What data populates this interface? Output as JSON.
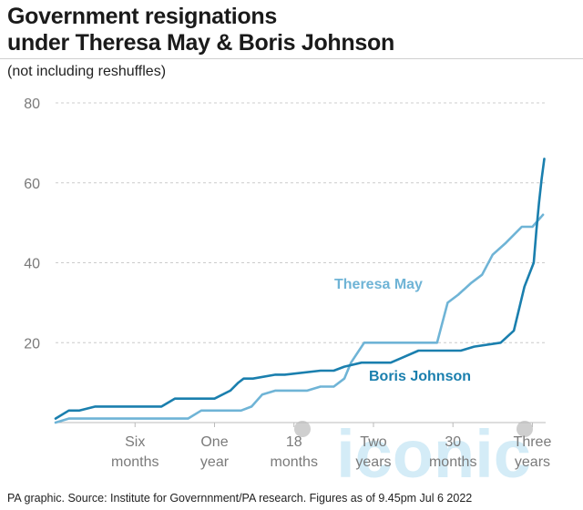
{
  "title_line1": "Government resignations",
  "title_line2": "under Theresa May & Boris Johnson",
  "subtitle": "(not including reshuffles)",
  "source": "PA graphic. Source: Institute for Governnment/PA research. Figures as of 9.45pm Jul 6 2022",
  "watermark_text": "iconic",
  "colors": {
    "theresa_may": "#6fb4d6",
    "boris_johnson": "#1a7fae",
    "grid": "#cccccc",
    "axis": "#bbbbbb",
    "tick_text": "#7a7a7a",
    "watermark": "#d4ecf7",
    "watermark_dot": "#cfcfcf"
  },
  "chart_data": {
    "type": "line",
    "xlabel": "",
    "ylabel": "",
    "xlim": [
      0,
      37
    ],
    "ylim": [
      0,
      80
    ],
    "yticks": [
      20,
      40,
      60,
      80
    ],
    "grid": true,
    "xticks": [
      {
        "x": 6,
        "line1": "Six",
        "line2": "months"
      },
      {
        "x": 12,
        "line1": "One",
        "line2": "year"
      },
      {
        "x": 18,
        "line1": "18",
        "line2": "months"
      },
      {
        "x": 24,
        "line1": "Two",
        "line2": "years"
      },
      {
        "x": 30,
        "line1": "30",
        "line2": "months"
      },
      {
        "x": 36,
        "line1": "Three",
        "line2": "years"
      }
    ],
    "series": [
      {
        "name": "Theresa May",
        "x": [
          0,
          1,
          10,
          11,
          14,
          14.8,
          15.6,
          16.6,
          19,
          20,
          21,
          21.8,
          22.3,
          23.3,
          28.8,
          29.6,
          30.4,
          31.4,
          32.2,
          33,
          34,
          35.2,
          36,
          36.8
        ],
        "y": [
          0,
          1,
          1,
          3,
          3,
          4,
          7,
          8,
          8,
          9,
          9,
          11,
          15,
          20,
          20,
          30,
          32,
          35,
          37,
          42,
          45,
          49,
          49,
          52
        ]
      },
      {
        "name": "Boris Johnson",
        "x": [
          0,
          1,
          1.8,
          3,
          8,
          9,
          12,
          13.2,
          13.8,
          14.2,
          14.9,
          16.6,
          17.3,
          20,
          21,
          21.8,
          23.1,
          24.1,
          25.3,
          26,
          27.4,
          28.9,
          30.6,
          31.6,
          33.6,
          34.6,
          35.4,
          36.1,
          36.3,
          36.5,
          36.7,
          36.9
        ],
        "y": [
          1,
          3,
          3,
          4,
          4,
          6,
          6,
          8,
          10,
          11,
          11,
          12,
          12,
          13,
          13,
          14,
          15,
          15,
          15,
          16,
          18,
          18,
          18,
          19,
          20,
          23,
          34,
          40,
          48,
          55,
          61,
          66
        ]
      }
    ],
    "annotations": [
      "Theresa May",
      "Boris Johnson"
    ]
  }
}
